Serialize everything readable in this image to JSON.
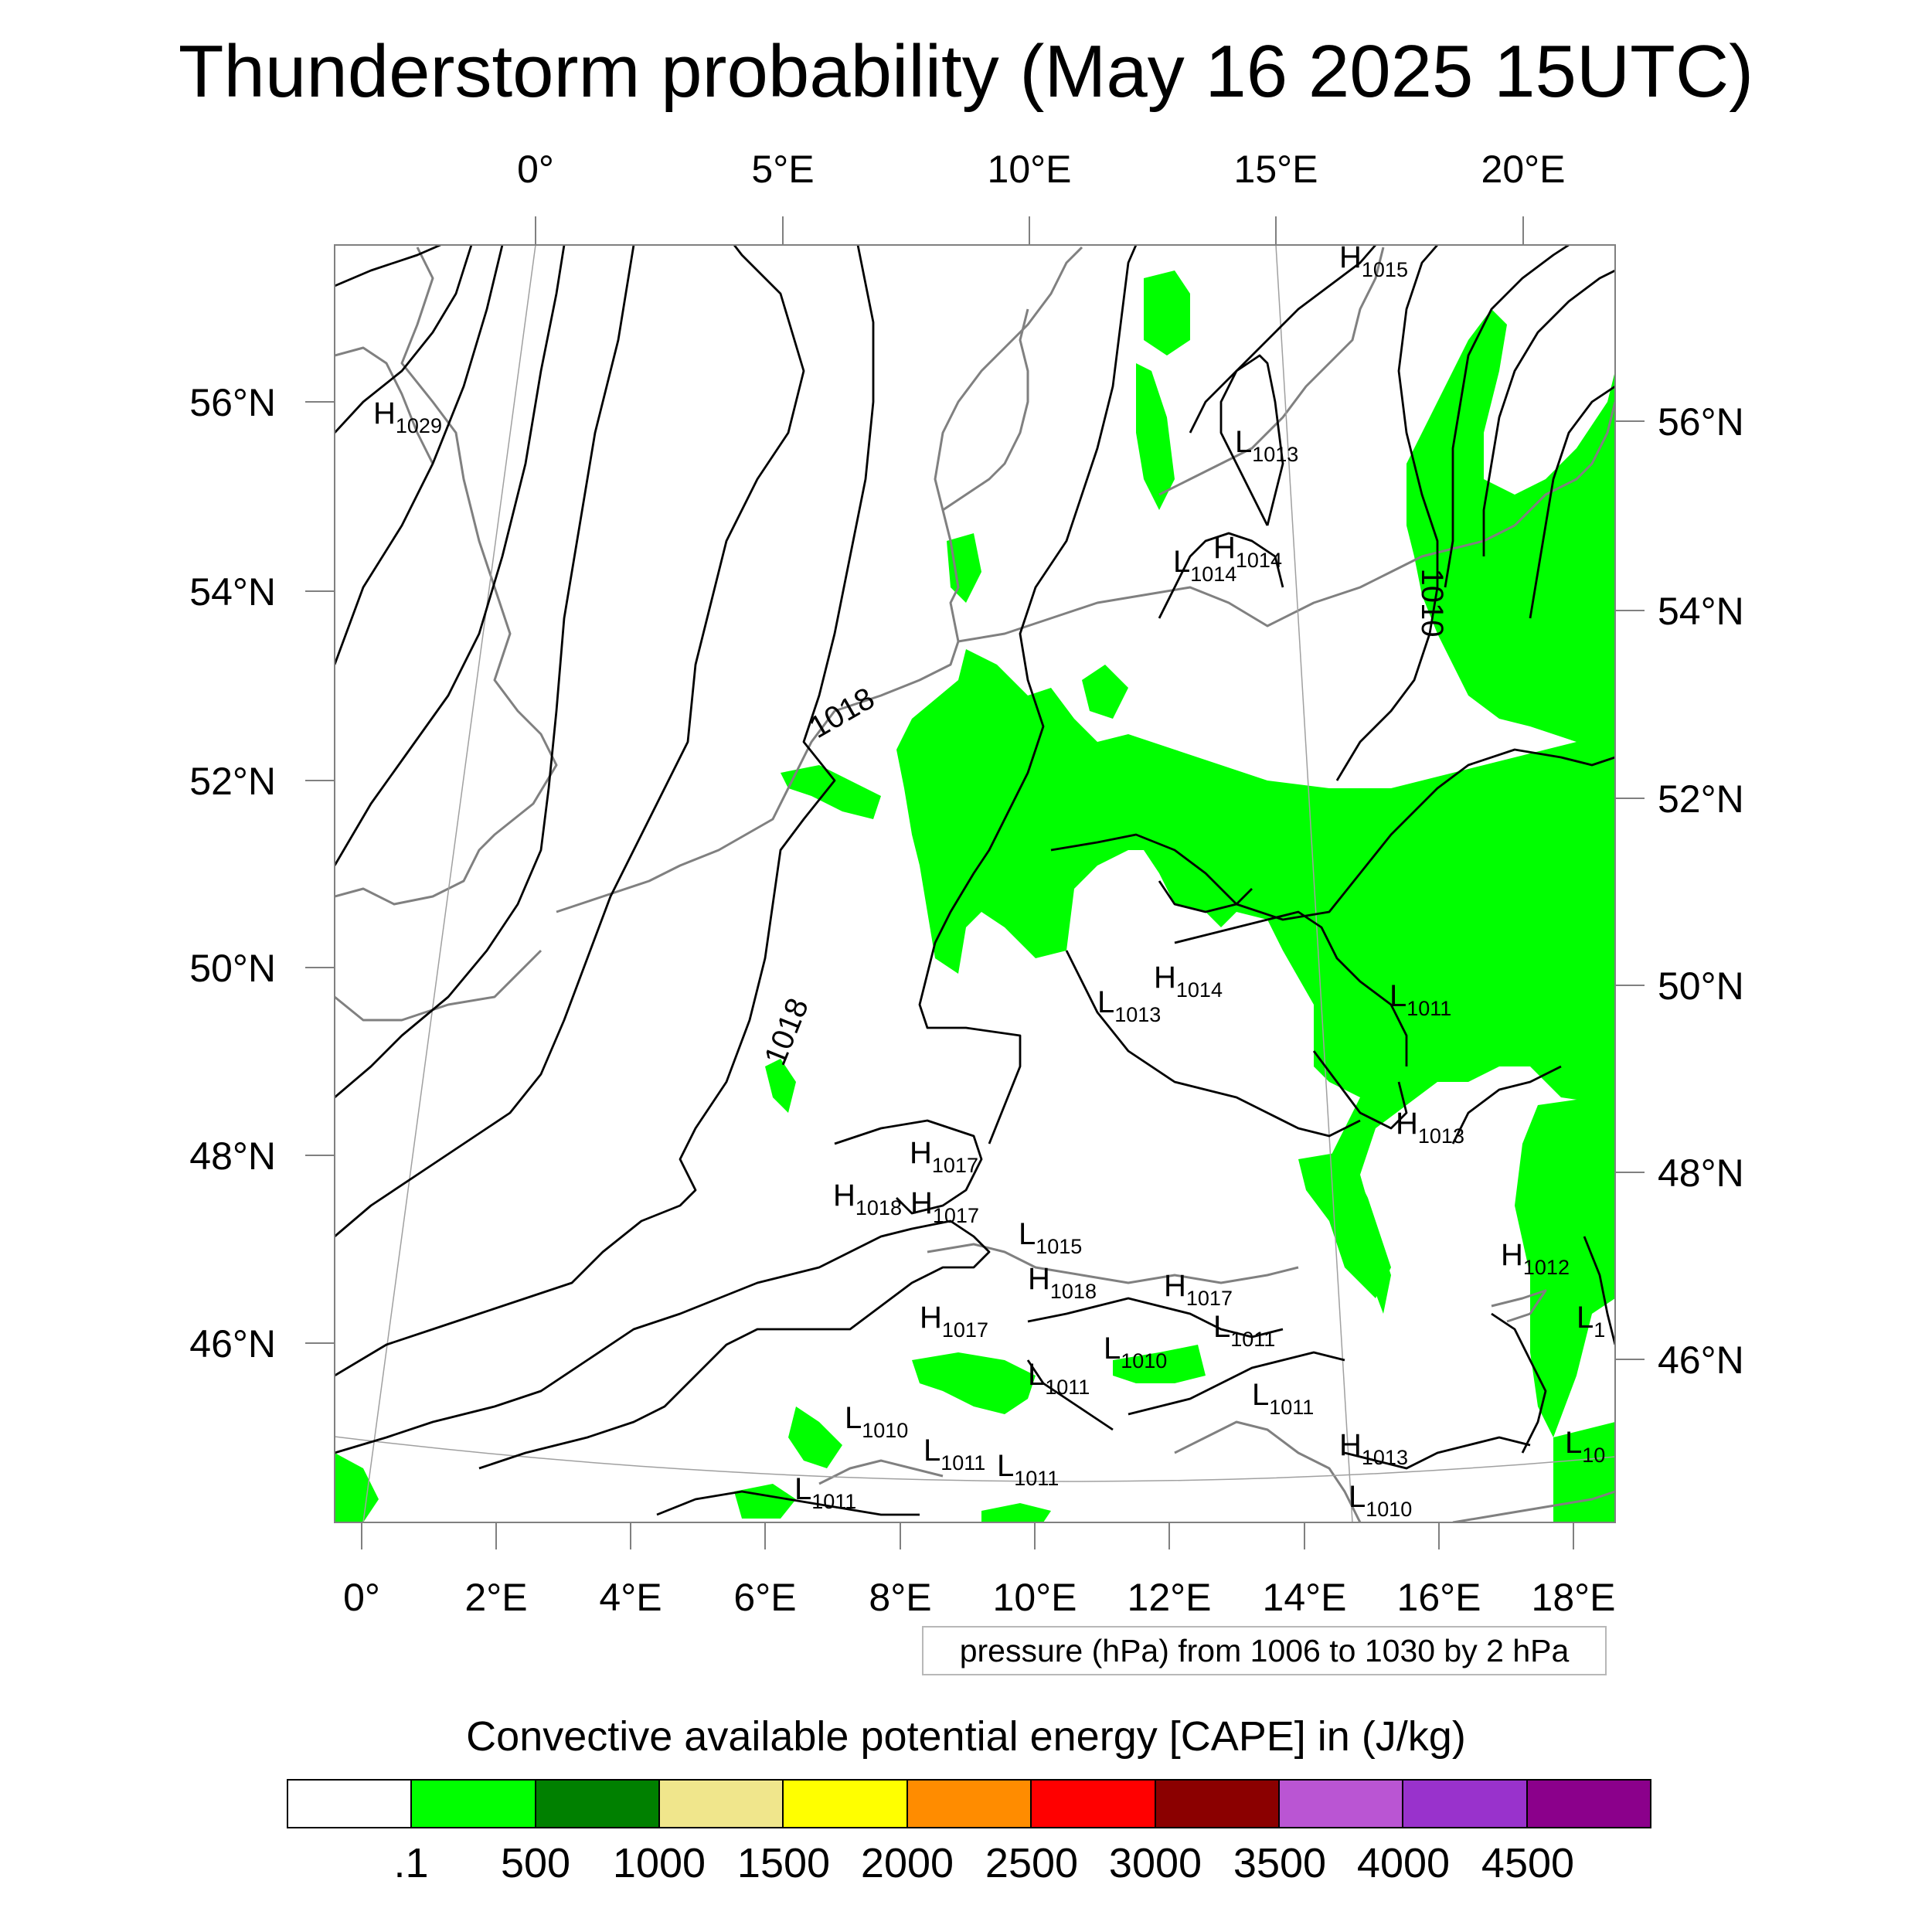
{
  "title": "Thunderstorm probability (May 16 2025 15UTC)",
  "map": {
    "top_lon_labels": [
      "0°",
      "5°E",
      "10°E",
      "15°E",
      "20°E"
    ],
    "bottom_lon_labels": [
      "0°",
      "2°E",
      "4°E",
      "6°E",
      "8°E",
      "10°E",
      "12°E",
      "14°E",
      "16°E",
      "18°E"
    ],
    "left_lat_labels": [
      "56°N",
      "54°N",
      "52°N",
      "50°N",
      "48°N",
      "46°N"
    ],
    "right_lat_labels": [
      "56°N",
      "54°N",
      "52°N",
      "50°N",
      "48°N",
      "46°N"
    ],
    "contour_labels": [
      "1018",
      "1018",
      "1010"
    ],
    "pressure_centers": [
      {
        "sym": "H",
        "val": "1029"
      },
      {
        "sym": "H",
        "val": "1015"
      },
      {
        "sym": "L",
        "val": "1013"
      },
      {
        "sym": "H",
        "val": "1014"
      },
      {
        "sym": "L",
        "val": "1014"
      },
      {
        "sym": "H",
        "val": "1014"
      },
      {
        "sym": "L",
        "val": "1013"
      },
      {
        "sym": "L",
        "val": "1011"
      },
      {
        "sym": "H",
        "val": "1013"
      },
      {
        "sym": "H",
        "val": "1017"
      },
      {
        "sym": "H",
        "val": "1018"
      },
      {
        "sym": "H",
        "val": "1017"
      },
      {
        "sym": "L",
        "val": "1015"
      },
      {
        "sym": "H",
        "val": "1018"
      },
      {
        "sym": "H",
        "val": "1017"
      },
      {
        "sym": "H",
        "val": "1017"
      },
      {
        "sym": "L",
        "val": "1011"
      },
      {
        "sym": "L",
        "val": "1010"
      },
      {
        "sym": "L",
        "val": "1011"
      },
      {
        "sym": "L",
        "val": "1011"
      },
      {
        "sym": "L",
        "val": "1010"
      },
      {
        "sym": "L",
        "val": "1011"
      },
      {
        "sym": "L",
        "val": "1011"
      },
      {
        "sym": "H",
        "val": "1013"
      },
      {
        "sym": "L",
        "val": "1011"
      },
      {
        "sym": "H",
        "val": "1012"
      },
      {
        "sym": "L",
        "val": "1010"
      },
      {
        "sym": "L",
        "val": "10"
      },
      {
        "sym": "L",
        "val": "1"
      }
    ]
  },
  "info_box": "pressure (hPa) from 1006 to 1030 by 2 hPa",
  "colorbar": {
    "title": "Convective available potential energy [CAPE] in (J/kg)",
    "colors": [
      "#ffffff",
      "#00ff00",
      "#008000",
      "#f0e68c",
      "#ffff00",
      "#ff8c00",
      "#ff0000",
      "#8b0000",
      "#ba55d3",
      "#9932cc",
      "#8b008b"
    ],
    "labels": [
      ".1",
      "500",
      "1000",
      "1500",
      "2000",
      "2500",
      "3000",
      "3500",
      "4000",
      "4500"
    ]
  },
  "colors": {
    "cape_fill": "#00ff00",
    "coastline": "#808080",
    "isobar": "#000000",
    "graticule": "#a0a0a0"
  }
}
